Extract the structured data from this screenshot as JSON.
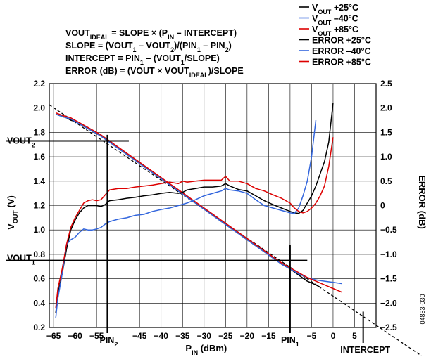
{
  "chart_data": {
    "type": "line",
    "xlabel": "PIN (dBm)",
    "ylabel": "VOUT (V)",
    "y2label": "ERROR (dB)",
    "xlim": [
      -66,
      10
    ],
    "ylim": [
      0.2,
      2.2
    ],
    "y2lim": [
      -2.5,
      2.5
    ],
    "grid": true,
    "legend_position": "top-right",
    "x_ticks": [
      "−65",
      "−60",
      "−55",
      "−45",
      "−40",
      "−35",
      "−30",
      "−25",
      "−20",
      "−15",
      "−5",
      "0",
      "5"
    ],
    "x_tick_values": [
      -65,
      -60,
      -55,
      -45,
      -40,
      -35,
      -30,
      -25,
      -20,
      -15,
      -5,
      0,
      5
    ],
    "y_ticks": [
      "0.2",
      "0.4",
      "0.6",
      "0.8",
      "1.0",
      "1.2",
      "1.4",
      "1.6",
      "1.8",
      "2.0",
      "2.2"
    ],
    "y_tick_values": [
      0.2,
      0.4,
      0.6,
      0.8,
      1.0,
      1.2,
      1.4,
      1.6,
      1.8,
      2.0,
      2.2
    ],
    "y2_ticks": [
      "−2.5",
      "−2.0",
      "−1.5",
      "−1.0",
      "−0.5",
      "0",
      "0.5",
      "1.0",
      "1.5",
      "2.0",
      "2.5"
    ],
    "y2_tick_values": [
      -2.5,
      -2.0,
      -1.5,
      -1.0,
      -0.5,
      0,
      0.5,
      1.0,
      1.5,
      2.0,
      2.5
    ],
    "formulas": [
      {
        "parts": [
          [
            "VOUT",
            ""
          ],
          [
            "IDEAL",
            "sub"
          ],
          [
            " = SLOPE × (P",
            ""
          ],
          [
            "IN",
            "sub"
          ],
          [
            " – INTERCEPT)",
            ""
          ]
        ]
      },
      {
        "parts": [
          [
            "SLOPE = (VOUT",
            ""
          ],
          [
            "1",
            "sub"
          ],
          [
            " – VOUT",
            ""
          ],
          [
            "2",
            "sub"
          ],
          [
            ")/(PIN",
            ""
          ],
          [
            "1",
            "sub"
          ],
          [
            " – PIN",
            ""
          ],
          [
            "2",
            "sub"
          ],
          [
            ")",
            ""
          ]
        ]
      },
      {
        "parts": [
          [
            "INTERCEPT = PIN",
            ""
          ],
          [
            "1",
            "sub"
          ],
          [
            " – (VOUT",
            ""
          ],
          [
            "1",
            "sub"
          ],
          [
            "/SLOPE)",
            ""
          ]
        ]
      },
      {
        "parts": [
          [
            "ERROR (dB) = (VOUT × VOUT",
            ""
          ],
          [
            "IDEAL",
            "sub"
          ],
          [
            ")/SLOPE",
            ""
          ]
        ]
      }
    ],
    "annotations": {
      "vout2": "VOUT2",
      "vout1": "VOUT1",
      "pin2": "PIN2",
      "pin1": "PIN1",
      "intercept": "INTERCEPT",
      "figure_id": "04853-030"
    },
    "reference_points": {
      "vout2_v": 1.73,
      "vout1_v": 0.75,
      "pin2_dbm": -52.5,
      "pin1_dbm": -10,
      "intercept_dbm": 7
    },
    "ideal_line": {
      "x": [
        -65,
        7
      ],
      "y": [
        1.98,
        0.21
      ]
    },
    "series": [
      {
        "name": "VOUT +25°C",
        "axis": "left",
        "color": "#000000",
        "x": [
          -64.5,
          -63,
          -62,
          -61,
          -60,
          -59,
          -58,
          -56,
          -54,
          -52,
          -50,
          -48,
          -46,
          -44,
          -42,
          -40,
          -38,
          -36,
          -34,
          -32,
          -30,
          -28,
          -26,
          -24,
          -22,
          -20,
          -18,
          -16,
          -14,
          -12,
          -10,
          -8,
          -6,
          -4,
          -3
        ],
        "y": [
          1.95,
          1.93,
          1.92,
          1.9,
          1.89,
          1.87,
          1.85,
          1.81,
          1.77,
          1.72,
          1.67,
          1.62,
          1.57,
          1.52,
          1.47,
          1.42,
          1.37,
          1.32,
          1.27,
          1.22,
          1.17,
          1.12,
          1.07,
          1.02,
          0.97,
          0.92,
          0.87,
          0.82,
          0.77,
          0.72,
          0.68,
          0.63,
          0.58,
          0.55,
          0.53
        ]
      },
      {
        "name": "VOUT –40°C",
        "axis": "left",
        "color": "#3366dd",
        "x": [
          -64.5,
          -63,
          -61,
          -60,
          -59,
          -58,
          -56,
          -54,
          -52,
          -50,
          -48,
          -46,
          -44,
          -42,
          -40,
          -38,
          -36,
          -34,
          -32,
          -30,
          -28,
          -26,
          -24,
          -22,
          -20,
          -18,
          -16,
          -14,
          -12,
          -10,
          -8,
          -6,
          -4,
          -2,
          0,
          2
        ],
        "y": [
          1.95,
          1.93,
          1.91,
          1.89,
          1.87,
          1.85,
          1.81,
          1.77,
          1.72,
          1.67,
          1.62,
          1.57,
          1.52,
          1.47,
          1.42,
          1.37,
          1.32,
          1.27,
          1.22,
          1.17,
          1.12,
          1.07,
          1.02,
          0.97,
          0.92,
          0.87,
          0.82,
          0.77,
          0.72,
          0.68,
          0.64,
          0.61,
          0.59,
          0.58,
          0.57,
          0.56
        ]
      },
      {
        "name": "VOUT +85°C",
        "axis": "left",
        "color": "#dd0000",
        "x": [
          -64.5,
          -63,
          -61,
          -60,
          -59,
          -58,
          -56,
          -54,
          -52,
          -50,
          -48,
          -46,
          -44,
          -42,
          -40,
          -38,
          -36,
          -34,
          -32,
          -30,
          -28,
          -26,
          -24,
          -22,
          -20,
          -18,
          -16,
          -14,
          -12,
          -10,
          -8,
          -6,
          -4,
          -2,
          0,
          2
        ],
        "y": [
          1.96,
          1.94,
          1.92,
          1.9,
          1.88,
          1.86,
          1.82,
          1.78,
          1.73,
          1.68,
          1.63,
          1.58,
          1.53,
          1.48,
          1.43,
          1.38,
          1.33,
          1.28,
          1.23,
          1.18,
          1.13,
          1.08,
          1.03,
          0.98,
          0.93,
          0.88,
          0.83,
          0.78,
          0.73,
          0.69,
          0.65,
          0.61,
          0.58,
          0.55,
          0.52,
          0.49
        ]
      },
      {
        "name": "ERROR +25°C",
        "axis": "right",
        "color": "#000000",
        "x": [
          -64.5,
          -64,
          -63,
          -62,
          -61,
          -60,
          -59,
          -58,
          -57,
          -56,
          -55,
          -54,
          -53,
          -52,
          -50,
          -48,
          -46,
          -44,
          -42,
          -40,
          -38,
          -36,
          -35,
          -34,
          -32,
          -30,
          -28,
          -26,
          -25,
          -24,
          -22,
          -20,
          -18,
          -16,
          -14,
          -12,
          -10,
          -9,
          -8,
          -7,
          -6,
          -5,
          -4,
          -3,
          -2,
          -1,
          0
        ],
        "y": [
          -2.2,
          -1.8,
          -1.4,
          -0.9,
          -0.5,
          -0.3,
          -0.15,
          -0.05,
          0.0,
          0.0,
          0.0,
          -0.02,
          0.02,
          0.1,
          0.12,
          0.15,
          0.17,
          0.2,
          0.22,
          0.25,
          0.27,
          0.25,
          0.27,
          0.32,
          0.35,
          0.38,
          0.38,
          0.4,
          0.45,
          0.4,
          0.33,
          0.3,
          0.2,
          0.1,
          0.02,
          -0.05,
          -0.12,
          -0.15,
          -0.16,
          -0.1,
          0.05,
          0.2,
          0.4,
          0.65,
          0.9,
          1.3,
          2.1
        ]
      },
      {
        "name": "ERROR –40°C",
        "axis": "right",
        "color": "#3366dd",
        "x": [
          -64.5,
          -64,
          -63,
          -62,
          -61,
          -60,
          -59,
          -58,
          -57,
          -56,
          -55,
          -54,
          -53,
          -52,
          -50,
          -48,
          -46,
          -44,
          -42,
          -40,
          -38,
          -36,
          -34,
          -32,
          -30,
          -28,
          -26,
          -25,
          -24,
          -22,
          -20,
          -18,
          -16,
          -14,
          -12,
          -10,
          -9,
          -8,
          -7,
          -6,
          -5,
          -4
        ],
        "y": [
          -2.3,
          -1.9,
          -1.4,
          -0.8,
          -0.7,
          -0.65,
          -0.55,
          -0.48,
          -0.5,
          -0.5,
          -0.48,
          -0.45,
          -0.38,
          -0.33,
          -0.28,
          -0.25,
          -0.2,
          -0.18,
          -0.12,
          -0.08,
          -0.05,
          0.0,
          0.05,
          0.12,
          0.2,
          0.25,
          0.3,
          0.35,
          0.32,
          0.3,
          0.25,
          0.12,
          0.0,
          -0.05,
          -0.1,
          -0.15,
          -0.16,
          -0.05,
          0.2,
          0.5,
          1.0,
          1.75
        ]
      },
      {
        "name": "ERROR +85°C",
        "axis": "right",
        "color": "#dd0000",
        "x": [
          -64.5,
          -64,
          -63,
          -62,
          -61,
          -60,
          -59,
          -58,
          -57,
          -56,
          -55,
          -54,
          -53,
          -52,
          -50,
          -48,
          -46,
          -44,
          -42,
          -40,
          -38,
          -36,
          -35,
          -34,
          -32,
          -30,
          -28,
          -26,
          -25,
          -24,
          -22,
          -20,
          -18,
          -16,
          -14,
          -12,
          -10,
          -9,
          -8,
          -7,
          -6,
          -5,
          -4,
          -3,
          -2,
          -1,
          0
        ],
        "y": [
          -2.1,
          -1.7,
          -1.3,
          -0.8,
          -0.45,
          -0.25,
          -0.1,
          0.05,
          0.1,
          0.12,
          0.1,
          0.12,
          0.22,
          0.32,
          0.35,
          0.35,
          0.38,
          0.4,
          0.42,
          0.45,
          0.48,
          0.45,
          0.5,
          0.48,
          0.5,
          0.52,
          0.52,
          0.52,
          0.6,
          0.5,
          0.5,
          0.45,
          0.35,
          0.3,
          0.22,
          0.15,
          0.05,
          -0.05,
          -0.12,
          -0.15,
          -0.12,
          -0.05,
          0.05,
          0.2,
          0.4,
          0.8,
          1.4
        ]
      }
    ]
  }
}
